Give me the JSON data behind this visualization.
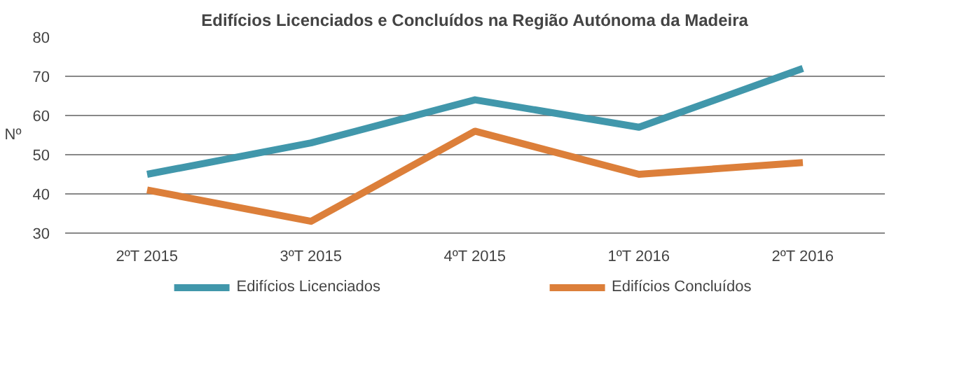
{
  "chart_data": {
    "type": "line",
    "title": "Edifícios Licenciados e Concluídos na Região Autónoma da Madeira",
    "ylabel": "Nº",
    "categories": [
      "2ºT 2015",
      "3ºT 2015",
      "4ºT 2015",
      "1ºT 2016",
      "2ºT 2016"
    ],
    "series": [
      {
        "name": "Edifícios Licenciados",
        "color": "#4197ab",
        "values": [
          45,
          53,
          64,
          57,
          72
        ]
      },
      {
        "name": "Edifícios Concluídos",
        "color": "#dc7f3a",
        "values": [
          41,
          33,
          56,
          45,
          48
        ]
      }
    ],
    "ylim": [
      30,
      80
    ],
    "yticks": [
      30,
      40,
      50,
      60,
      70,
      80
    ],
    "grid": "y",
    "legend": "bottom",
    "marker": "none",
    "line_style": "solid"
  }
}
